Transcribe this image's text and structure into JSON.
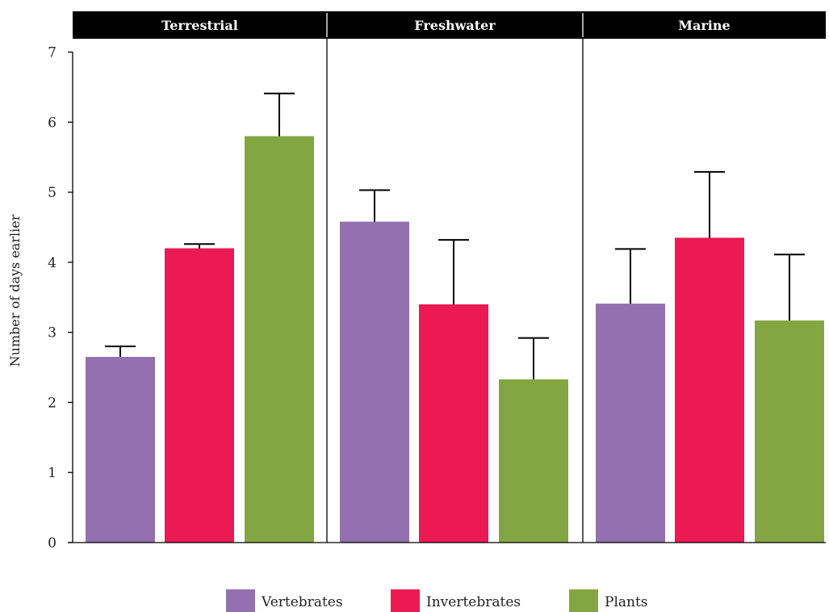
{
  "chart_data": {
    "type": "bar",
    "title": "",
    "xlabel": "",
    "ylabel": "Number of days earlier",
    "ylim": [
      0,
      7
    ],
    "yticks": [
      0,
      1,
      2,
      3,
      4,
      5,
      6,
      7
    ],
    "grid": false,
    "legend_position": "bottom",
    "panels": [
      "Terrestrial",
      "Freshwater",
      "Marine"
    ],
    "series": [
      {
        "name": "Vertebrates",
        "color": "#9470b0",
        "values": [
          2.65,
          4.58,
          3.41
        ],
        "error": [
          0.15,
          0.45,
          0.78
        ]
      },
      {
        "name": "Invertebrates",
        "color": "#eb1a52",
        "values": [
          4.2,
          3.4,
          4.35
        ],
        "error": [
          0.06,
          0.92,
          0.94
        ]
      },
      {
        "name": "Plants",
        "color": "#84a642",
        "values": [
          5.8,
          2.33,
          3.17
        ],
        "error": [
          0.61,
          0.59,
          0.94
        ]
      }
    ]
  }
}
